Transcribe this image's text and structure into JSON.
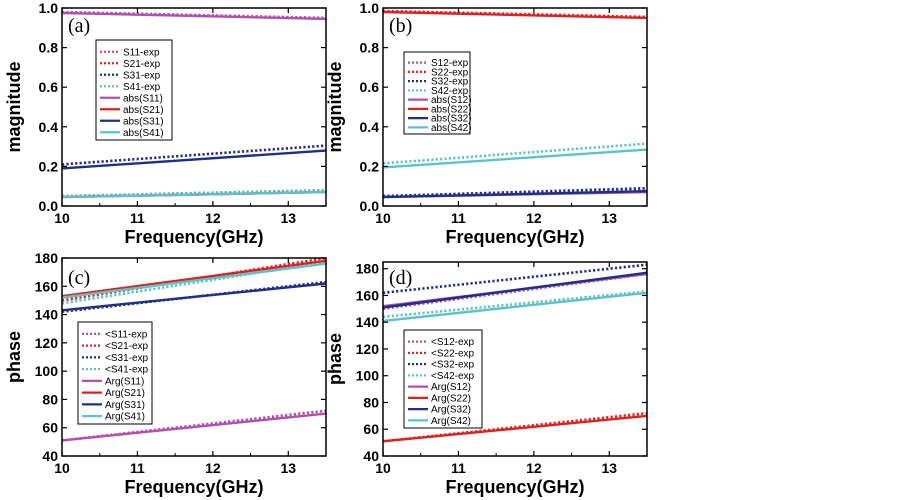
{
  "chart_data": [
    {
      "id": "a",
      "type": "line",
      "panel_label": "(a)",
      "xlabel": "Frequency(GHz)",
      "ylabel": "magnitude",
      "xlim": [
        10,
        13.5
      ],
      "ylim": [
        0,
        1.0
      ],
      "xticks": [
        10,
        11,
        12,
        13
      ],
      "xtick_labels": [
        "10",
        "11",
        "12",
        "13"
      ],
      "yticks": [
        0,
        0.2,
        0.4,
        0.6,
        0.8,
        1.0
      ],
      "ytick_labels": [
        "0.0",
        "0.2",
        "0.4",
        "0.6",
        "0.8",
        "1.0"
      ],
      "x": [
        10,
        13.5
      ],
      "series": [
        {
          "name": "S11-exp",
          "style": "dotted",
          "color": "#b04fb0",
          "values": [
            0.98,
            0.95
          ]
        },
        {
          "name": "S21-exp",
          "style": "dotted",
          "color": "#e02020",
          "values": [
            0.05,
            0.08
          ]
        },
        {
          "name": "S31-exp",
          "style": "dotted",
          "color": "#1f2f86",
          "values": [
            0.21,
            0.305
          ]
        },
        {
          "name": "S41-exp",
          "style": "dotted",
          "color": "#5bc3c8",
          "values": [
            0.05,
            0.08
          ]
        },
        {
          "name": "abs(S11)",
          "style": "solid",
          "color": "#b04fb0",
          "values": [
            0.975,
            0.945
          ]
        },
        {
          "name": "abs(S21)",
          "style": "solid",
          "color": "#e02020",
          "values": [
            0.045,
            0.07
          ]
        },
        {
          "name": "abs(S31)",
          "style": "solid",
          "color": "#1f2f86",
          "values": [
            0.19,
            0.28
          ]
        },
        {
          "name": "abs(S41)",
          "style": "solid",
          "color": "#5bc3c8",
          "values": [
            0.045,
            0.07
          ]
        }
      ]
    },
    {
      "id": "b",
      "type": "line",
      "panel_label": "(b)",
      "xlabel": "Frequency(GHz)",
      "ylabel": "magnitude",
      "xlim": [
        10,
        13.5
      ],
      "ylim": [
        0,
        1.0
      ],
      "xticks": [
        10,
        11,
        12,
        13
      ],
      "xtick_labels": [
        "10",
        "11",
        "12",
        "13"
      ],
      "yticks": [
        0,
        0.2,
        0.4,
        0.6,
        0.8,
        1.0
      ],
      "ytick_labels": [
        "0.0",
        "0.2",
        "0.4",
        "0.6",
        "0.8",
        "1.0"
      ],
      "x": [
        10,
        13.5
      ],
      "series": [
        {
          "name": "S12-exp",
          "style": "dotted",
          "color": "#b04fb0",
          "values": [
            0.05,
            0.08
          ]
        },
        {
          "name": "S22-exp",
          "style": "dotted",
          "color": "#e02020",
          "values": [
            0.985,
            0.955
          ]
        },
        {
          "name": "S32-exp",
          "style": "dotted",
          "color": "#1f2f86",
          "values": [
            0.05,
            0.09
          ]
        },
        {
          "name": "S42-exp",
          "style": "dotted",
          "color": "#5bc3c8",
          "values": [
            0.215,
            0.315
          ]
        },
        {
          "name": "abs(S12)",
          "style": "solid",
          "color": "#b04fb0",
          "values": [
            0.045,
            0.07
          ]
        },
        {
          "name": "abs(S22)",
          "style": "solid",
          "color": "#e02020",
          "values": [
            0.98,
            0.95
          ]
        },
        {
          "name": "abs(S32)",
          "style": "solid",
          "color": "#1f2f86",
          "values": [
            0.045,
            0.075
          ]
        },
        {
          "name": "abs(S42)",
          "style": "solid",
          "color": "#5bc3c8",
          "values": [
            0.195,
            0.285
          ]
        }
      ]
    },
    {
      "id": "c",
      "type": "line",
      "panel_label": "(c)",
      "xlabel": "Frequency(GHz)",
      "ylabel": "phase",
      "xlim": [
        10,
        13.5
      ],
      "ylim": [
        40,
        180
      ],
      "xticks": [
        10,
        11,
        12,
        13
      ],
      "xtick_labels": [
        "10",
        "11",
        "12",
        "13"
      ],
      "yticks": [
        40,
        60,
        80,
        100,
        120,
        140,
        160,
        180
      ],
      "ytick_labels": [
        "40",
        "60",
        "80",
        "100",
        "120",
        "140",
        "160",
        "180"
      ],
      "x": [
        10,
        13.5
      ],
      "series": [
        {
          "name": "<S11-exp",
          "style": "dotted",
          "color": "#b04fb0",
          "values": [
            51,
            72
          ]
        },
        {
          "name": "<S21-exp",
          "style": "dotted",
          "color": "#e02020",
          "values": [
            150,
            180
          ]
        },
        {
          "name": "<S31-exp",
          "style": "dotted",
          "color": "#1f2f86",
          "values": [
            142,
            163
          ]
        },
        {
          "name": "<S41-exp",
          "style": "dotted",
          "color": "#5bc3c8",
          "values": [
            148,
            177
          ]
        },
        {
          "name": "Arg(S11)",
          "style": "solid",
          "color": "#b04fb0",
          "values": [
            51,
            70
          ]
        },
        {
          "name": "Arg(S21)",
          "style": "solid",
          "color": "#e02020",
          "values": [
            153,
            178
          ]
        },
        {
          "name": "Arg(S31)",
          "style": "solid",
          "color": "#1f2f86",
          "values": [
            143,
            162
          ]
        },
        {
          "name": "Arg(S41)",
          "style": "solid",
          "color": "#5bc3c8",
          "values": [
            152,
            176
          ]
        }
      ]
    },
    {
      "id": "d",
      "type": "line",
      "panel_label": "(d)",
      "xlabel": "Frequency(GHz)",
      "ylabel": "phase",
      "xlim": [
        10,
        13.5
      ],
      "ylim": [
        40,
        185
      ],
      "xticks": [
        10,
        11,
        12,
        13
      ],
      "xtick_labels": [
        "10",
        "11",
        "12",
        "13"
      ],
      "yticks": [
        40,
        60,
        80,
        100,
        120,
        140,
        160,
        180
      ],
      "ytick_labels": [
        "40",
        "60",
        "80",
        "100",
        "120",
        "140",
        "160",
        "180"
      ],
      "x": [
        10,
        13.5
      ],
      "series": [
        {
          "name": "<S12-exp",
          "style": "dotted",
          "color": "#b04fb0",
          "values": [
            150,
            176
          ]
        },
        {
          "name": "<S22-exp",
          "style": "dotted",
          "color": "#e02020",
          "values": [
            51,
            72
          ]
        },
        {
          "name": "<S32-exp",
          "style": "dotted",
          "color": "#1f2f86",
          "values": [
            162,
            183
          ]
        },
        {
          "name": "<S42-exp",
          "style": "dotted",
          "color": "#5bc3c8",
          "values": [
            144,
            163
          ]
        },
        {
          "name": "Arg(S12)",
          "style": "solid",
          "color": "#b04fb0",
          "values": [
            152,
            176
          ]
        },
        {
          "name": "Arg(S22)",
          "style": "solid",
          "color": "#e02020",
          "values": [
            51,
            70
          ]
        },
        {
          "name": "Arg(S32)",
          "style": "solid",
          "color": "#1f2f86",
          "values": [
            151,
            177
          ]
        },
        {
          "name": "Arg(S42)",
          "style": "solid",
          "color": "#5bc3c8",
          "values": [
            141,
            162
          ]
        }
      ]
    }
  ]
}
